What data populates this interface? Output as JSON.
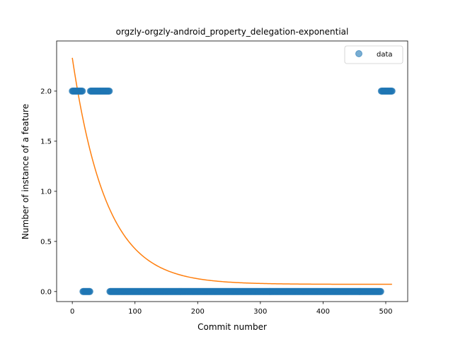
{
  "chart_data": {
    "type": "scatter",
    "title": "orgzly-orgzly-android_property_delegation-exponential",
    "xlabel": "Commit number",
    "ylabel": "Number of instance of a feature",
    "xlim": [
      -25,
      535
    ],
    "ylim": [
      -0.1,
      2.5
    ],
    "xticks": [
      0,
      100,
      200,
      300,
      400,
      500
    ],
    "yticks": [
      0.0,
      0.5,
      1.0,
      1.5,
      2.0
    ],
    "xtick_labels": [
      "0",
      "100",
      "200",
      "300",
      "400",
      "500"
    ],
    "ytick_labels": [
      "0.0",
      "0.5",
      "1.0",
      "1.5",
      "2.0"
    ],
    "grid": false,
    "legend": {
      "position": "top-right",
      "entries": [
        "data"
      ]
    },
    "series": [
      {
        "name": "data",
        "kind": "scatter",
        "color": "#1f77b4",
        "segments": [
          {
            "x_start": 0,
            "x_end": 16,
            "y": 2
          },
          {
            "x_start": 17,
            "x_end": 28,
            "y": 0
          },
          {
            "x_start": 29,
            "x_end": 59,
            "y": 2
          },
          {
            "x_start": 60,
            "x_end": 492,
            "y": 0
          },
          {
            "x_start": 493,
            "x_end": 510,
            "y": 2
          }
        ]
      },
      {
        "kind": "line",
        "color": "#ff7f0e",
        "model": "exponential",
        "params": {
          "a": 2.26,
          "b": 0.0185,
          "c": 0.072
        },
        "x_range": [
          0,
          510
        ]
      }
    ]
  }
}
